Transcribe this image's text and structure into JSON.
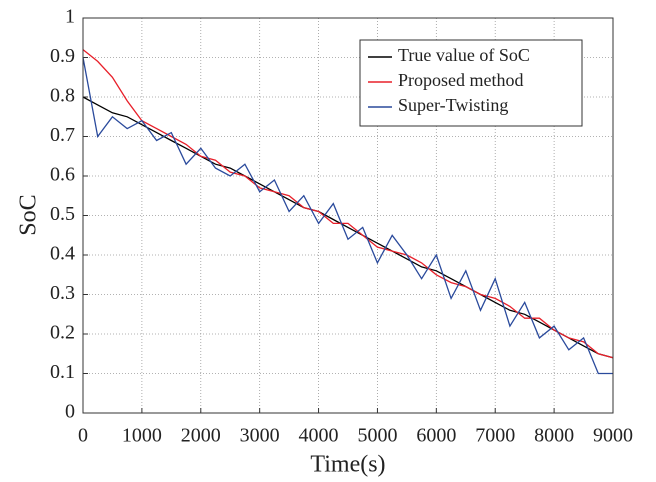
{
  "chart_data": {
    "type": "line",
    "x_label": "Time(s)",
    "y_label": "SoC",
    "x": [
      0,
      250,
      500,
      750,
      1000,
      1250,
      1500,
      1750,
      2000,
      2250,
      2500,
      2750,
      3000,
      3250,
      3500,
      3750,
      4000,
      4250,
      4500,
      4750,
      5000,
      5250,
      5500,
      5750,
      6000,
      6250,
      6500,
      6750,
      7000,
      7250,
      7500,
      7750,
      8000,
      8250,
      8500,
      8750,
      9000
    ],
    "series": [
      {
        "name": "True value of SoC",
        "color": "#000000",
        "values": [
          0.8,
          0.78,
          0.76,
          0.75,
          0.73,
          0.71,
          0.69,
          0.67,
          0.65,
          0.63,
          0.62,
          0.6,
          0.58,
          0.56,
          0.54,
          0.52,
          0.51,
          0.49,
          0.47,
          0.45,
          0.43,
          0.41,
          0.39,
          0.37,
          0.36,
          0.34,
          0.32,
          0.3,
          0.28,
          0.26,
          0.25,
          0.23,
          0.21,
          0.19,
          0.17,
          0.15,
          0.14
        ]
      },
      {
        "name": "Proposed method",
        "color": "#e8202a",
        "values": [
          0.92,
          0.89,
          0.85,
          0.79,
          0.74,
          0.72,
          0.7,
          0.68,
          0.65,
          0.64,
          0.61,
          0.6,
          0.57,
          0.56,
          0.55,
          0.52,
          0.51,
          0.48,
          0.48,
          0.45,
          0.42,
          0.41,
          0.4,
          0.38,
          0.35,
          0.33,
          0.32,
          0.3,
          0.29,
          0.27,
          0.24,
          0.24,
          0.21,
          0.19,
          0.18,
          0.15,
          0.14
        ]
      },
      {
        "name": "Super-Twisting",
        "color": "#2a4a9c",
        "values": [
          0.9,
          0.7,
          0.75,
          0.72,
          0.74,
          0.69,
          0.71,
          0.63,
          0.67,
          0.62,
          0.6,
          0.63,
          0.56,
          0.59,
          0.51,
          0.55,
          0.48,
          0.53,
          0.44,
          0.47,
          0.38,
          0.45,
          0.4,
          0.34,
          0.4,
          0.29,
          0.36,
          0.26,
          0.34,
          0.22,
          0.28,
          0.19,
          0.22,
          0.16,
          0.19,
          0.1,
          0.1
        ]
      }
    ],
    "xlim": [
      0,
      9000
    ],
    "ylim": [
      0,
      1
    ],
    "xticks": [
      0,
      1000,
      2000,
      3000,
      4000,
      5000,
      6000,
      7000,
      8000,
      9000
    ],
    "yticks": [
      0,
      0.1,
      0.2,
      0.3,
      0.4,
      0.5,
      0.6,
      0.7,
      0.8,
      0.9,
      1
    ],
    "grid": true,
    "legend": "upper right"
  }
}
